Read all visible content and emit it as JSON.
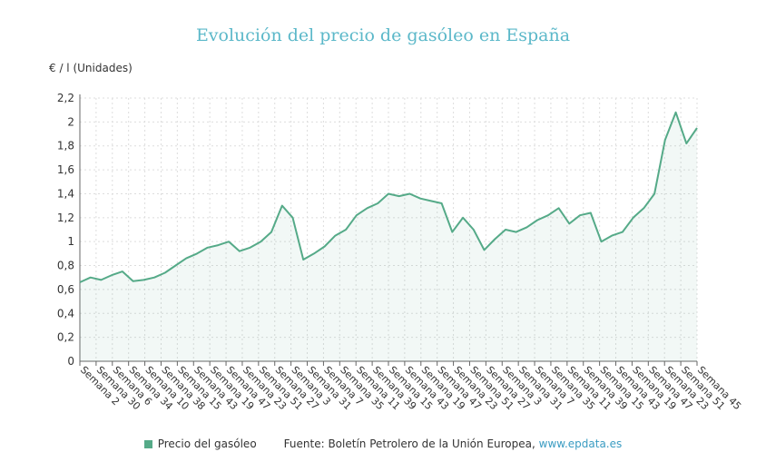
{
  "chart_data": {
    "type": "area",
    "title": "Evolución del precio de gasóleo en España",
    "ylabel": "€ / l (Unidades)",
    "xlabel": "",
    "ylim": [
      0,
      2.2
    ],
    "yticks": [
      "0",
      "0,2",
      "0,4",
      "0,6",
      "0,8",
      "1",
      "1,2",
      "1,4",
      "1,6",
      "1,8",
      "2",
      "2,2"
    ],
    "yticks_values": [
      0,
      0.2,
      0.4,
      0.6,
      0.8,
      1.0,
      1.2,
      1.4,
      1.6,
      1.8,
      2.0,
      2.2
    ],
    "xticks": [
      "Semana 2",
      "Semana 30",
      "Semana 6",
      "Semana 34",
      "Semana 10",
      "Semana 38",
      "Semana 15",
      "Semana 43",
      "Semana 19",
      "Semana 47",
      "Semana 23",
      "Semana 51",
      "Semana 27",
      "Semana 3",
      "Semana 31",
      "Semana 7",
      "Semana 35",
      "Semana 11",
      "Semana 39",
      "Semana 15",
      "Semana 43",
      "Semana 19",
      "Semana 47",
      "Semana 23",
      "Semana 51",
      "Semana 27",
      "Semana 3",
      "Semana 31",
      "Semana 7",
      "Semana 35",
      "Semana 11",
      "Semana 39",
      "Semana 15",
      "Semana 43",
      "Semana 19",
      "Semana 47",
      "Semana 23",
      "Semana 51",
      "Semana 45"
    ],
    "series": [
      {
        "name": "Precio del gasóleo",
        "color": "#55aa88",
        "values": [
          0.66,
          0.7,
          0.68,
          0.72,
          0.75,
          0.67,
          0.68,
          0.7,
          0.74,
          0.8,
          0.86,
          0.9,
          0.95,
          0.97,
          1.0,
          0.92,
          0.95,
          1.0,
          1.08,
          1.3,
          1.2,
          0.85,
          0.9,
          0.96,
          1.05,
          1.1,
          1.22,
          1.28,
          1.32,
          1.4,
          1.38,
          1.4,
          1.36,
          1.34,
          1.32,
          1.08,
          1.2,
          1.1,
          0.93,
          1.02,
          1.1,
          1.08,
          1.12,
          1.18,
          1.22,
          1.28,
          1.15,
          1.22,
          1.24,
          1.0,
          1.05,
          1.08,
          1.2,
          1.28,
          1.4,
          1.85,
          2.08,
          1.82,
          1.95
        ]
      }
    ],
    "legend": "bottom",
    "grid": true
  },
  "footer": {
    "legend_label": "Precio del gasóleo",
    "source_prefix": "Fuente: Boletín Petrolero de la Unión Europea, ",
    "source_link": "www.epdata.es"
  }
}
